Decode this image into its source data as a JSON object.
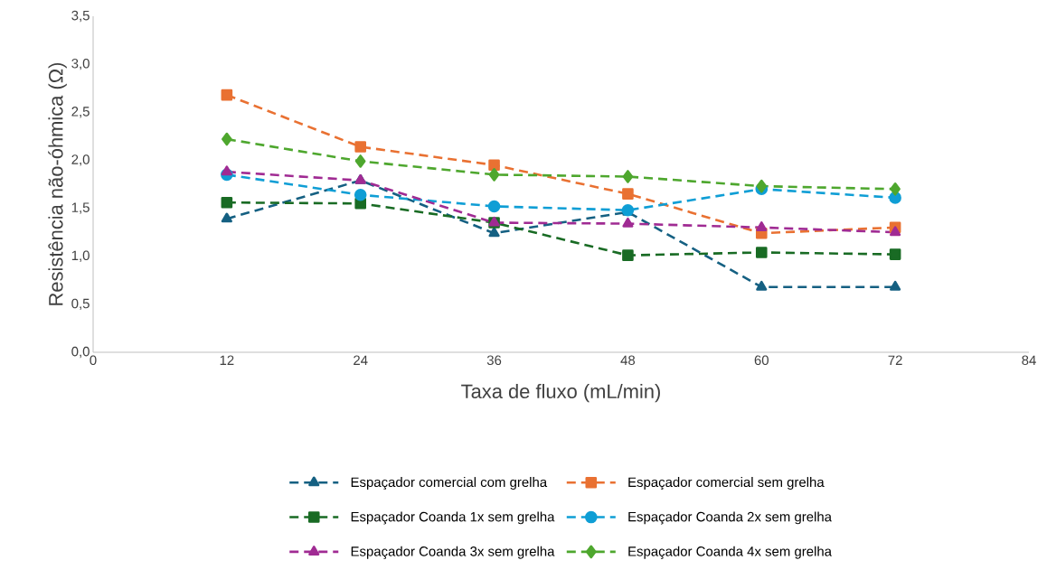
{
  "chart_data": {
    "type": "line",
    "xlabel": "Taxa de fluxo (mL/min)",
    "ylabel": "Resistência não-óhmica (Ω)",
    "x": [
      12,
      24,
      36,
      48,
      60,
      72
    ],
    "xlim": [
      0,
      84
    ],
    "xticks": [
      0,
      12,
      24,
      36,
      48,
      60,
      72,
      84
    ],
    "ylim": [
      0,
      3.5
    ],
    "yticks": [
      {
        "value": 0,
        "label": "0,0"
      },
      {
        "value": 0.5,
        "label": "0,5"
      },
      {
        "value": 1,
        "label": "1,0"
      },
      {
        "value": 1.5,
        "label": "1,5"
      },
      {
        "value": 2,
        "label": "2,0"
      },
      {
        "value": 2.5,
        "label": "2,5"
      },
      {
        "value": 3,
        "label": "3,0"
      },
      {
        "value": 3.5,
        "label": "3,5"
      }
    ],
    "line_style": "dashed",
    "legend": "bottom",
    "grid": false,
    "series": [
      {
        "name": "Espaçador comercial com grelha",
        "color": "#156082",
        "marker": "triangle",
        "values": [
          1.39,
          1.79,
          1.24,
          1.46,
          0.68,
          0.68
        ]
      },
      {
        "name": "Espaçador comercial sem grelha",
        "color": "#e97132",
        "marker": "square",
        "values": [
          2.68,
          2.14,
          1.95,
          1.65,
          1.24,
          1.3
        ]
      },
      {
        "name": "Espaçador Coanda 1x sem grelha",
        "color": "#196b24",
        "marker": "square",
        "values": [
          1.56,
          1.55,
          1.35,
          1.01,
          1.04,
          1.02
        ]
      },
      {
        "name": "Espaçador Coanda 2x sem grelha",
        "color": "#0f9ed5",
        "marker": "circle",
        "values": [
          1.85,
          1.64,
          1.52,
          1.48,
          1.7,
          1.61
        ]
      },
      {
        "name": "Espaçador Coanda 3x sem grelha",
        "color": "#a02b93",
        "marker": "triangle",
        "values": [
          1.88,
          1.79,
          1.35,
          1.34,
          1.3,
          1.25
        ]
      },
      {
        "name": "Espaçador Coanda 4x sem grelha",
        "color": "#4ea72e",
        "marker": "diamond",
        "values": [
          2.22,
          1.99,
          1.85,
          1.83,
          1.73,
          1.7
        ]
      }
    ]
  }
}
